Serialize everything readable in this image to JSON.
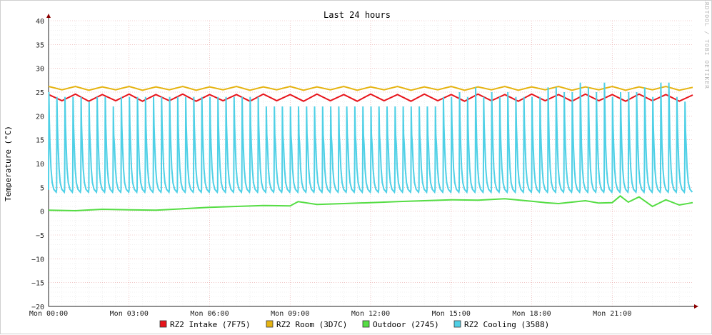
{
  "chart_data": {
    "type": "line",
    "title": "Last 24 hours",
    "ylabel": "Temperature (°C)",
    "watermark": "RRDTOOL / TOBI OETIKER",
    "ylim": [
      -20,
      40
    ],
    "yticks": [
      40,
      35,
      30,
      25,
      20,
      15,
      10,
      5,
      0,
      -5,
      -10,
      -15,
      -20
    ],
    "xlim_hours": [
      0,
      24
    ],
    "x_tick_labels": [
      "Mon 00:00",
      "Mon 03:00",
      "Mon 06:00",
      "Mon 09:00",
      "Mon 12:00",
      "Mon 15:00",
      "Mon 18:00",
      "Mon 21:00"
    ],
    "x_tick_hours": [
      0,
      3,
      6,
      9,
      12,
      15,
      18,
      21
    ],
    "grid": true,
    "legend_position": "bottom",
    "series": [
      {
        "name": "RZ2 Intake (7F75)",
        "color": "#e8141b",
        "x_hours": [
          0,
          0.5,
          1,
          1.5,
          2,
          2.5,
          3,
          3.5,
          4,
          4.5,
          5,
          5.5,
          6,
          6.5,
          7,
          7.5,
          8,
          8.5,
          9,
          9.5,
          10,
          10.5,
          11,
          11.5,
          12,
          12.5,
          13,
          13.5,
          14,
          14.5,
          15,
          15.5,
          16,
          16.5,
          17,
          17.5,
          18,
          18.5,
          19,
          19.5,
          20,
          20.5,
          21,
          21.5,
          22,
          22.5,
          23,
          23.5,
          24
        ],
        "values": [
          24.5,
          23.2,
          24.6,
          23.1,
          24.5,
          23.2,
          24.6,
          23.1,
          24.5,
          23.2,
          24.6,
          23.1,
          24.5,
          23.2,
          24.5,
          23.1,
          24.6,
          23.2,
          24.5,
          23.1,
          24.6,
          23.2,
          24.5,
          23.1,
          24.6,
          23.2,
          24.5,
          23.1,
          24.6,
          23.2,
          24.5,
          23.1,
          24.6,
          23.2,
          24.5,
          23.1,
          24.6,
          23.2,
          24.5,
          23.1,
          24.6,
          23.2,
          24.5,
          23.1,
          24.6,
          23.2,
          24.5,
          23.1,
          24.4
        ]
      },
      {
        "name": "RZ2 Room (3D7C)",
        "color": "#e6b412",
        "x_hours": [
          0,
          0.5,
          1,
          1.5,
          2,
          2.5,
          3,
          3.5,
          4,
          4.5,
          5,
          5.5,
          6,
          6.5,
          7,
          7.5,
          8,
          8.5,
          9,
          9.5,
          10,
          10.5,
          11,
          11.5,
          12,
          12.5,
          13,
          13.5,
          14,
          14.5,
          15,
          15.5,
          16,
          16.5,
          17,
          17.5,
          18,
          18.5,
          19,
          19.5,
          20,
          20.5,
          21,
          21.5,
          22,
          22.5,
          23,
          23.5,
          24
        ],
        "values": [
          26.2,
          25.5,
          26.2,
          25.4,
          26.1,
          25.5,
          26.2,
          25.4,
          26.1,
          25.5,
          26.2,
          25.4,
          26.1,
          25.5,
          26.2,
          25.4,
          26.1,
          25.5,
          26.2,
          25.4,
          26.1,
          25.5,
          26.2,
          25.4,
          26.1,
          25.5,
          26.2,
          25.4,
          26.1,
          25.5,
          26.2,
          25.4,
          26.1,
          25.5,
          26.2,
          25.4,
          26.1,
          25.5,
          26.2,
          25.4,
          26.1,
          25.5,
          26.2,
          25.4,
          26.1,
          25.5,
          26.2,
          25.4,
          26.0
        ]
      },
      {
        "name": "Outdoor (2745)",
        "color": "#55dd44",
        "x_hours": [
          0,
          1,
          2,
          3,
          4,
          5,
          6,
          7,
          8,
          9,
          9.3,
          10,
          11,
          12,
          13,
          14,
          15,
          16,
          17,
          18,
          18.5,
          19,
          19.5,
          20,
          20.5,
          21,
          21.3,
          21.6,
          22,
          22.5,
          23,
          23.5,
          24
        ],
        "values": [
          0.2,
          0.1,
          0.4,
          0.3,
          0.2,
          0.5,
          0.8,
          1.0,
          1.2,
          1.1,
          2.0,
          1.4,
          1.6,
          1.8,
          2.0,
          2.2,
          2.4,
          2.3,
          2.6,
          2.1,
          1.8,
          1.6,
          1.9,
          2.2,
          1.7,
          1.8,
          3.2,
          1.9,
          3.0,
          1.0,
          2.4,
          1.3,
          1.8
        ]
      },
      {
        "name": "RZ2 Cooling (3588)",
        "color": "#4fd0e6",
        "cycle_minutes": 18,
        "baseline_min": 4,
        "peak_range": [
          20,
          27
        ],
        "x_hours": [
          0,
          0.3,
          0.6,
          0.9,
          1.2,
          1.5,
          1.8,
          2.1,
          2.4,
          2.7,
          3.0,
          3.3,
          3.6,
          3.9,
          4.2,
          4.5,
          4.8,
          5.1,
          5.4,
          5.7,
          6.0,
          6.3,
          6.6,
          6.9,
          7.2,
          7.5,
          7.8,
          8.1,
          8.4,
          8.7,
          9.0,
          9.3,
          9.6,
          9.9,
          10.2,
          10.5,
          10.8,
          11.1,
          11.4,
          11.7,
          12.0,
          12.3,
          12.6,
          12.9,
          13.2,
          13.5,
          13.8,
          14.1,
          14.4,
          14.7,
          15.0,
          15.3,
          15.6,
          15.9,
          16.2,
          16.5,
          16.8,
          17.1,
          17.4,
          17.7,
          18.0,
          18.3,
          18.6,
          18.9,
          19.2,
          19.5,
          19.8,
          20.1,
          20.4,
          20.7,
          21.0,
          21.3,
          21.6,
          21.9,
          22.2,
          22.5,
          22.8,
          23.1,
          23.4,
          23.7
        ],
        "peaks": [
          25,
          24,
          24,
          24,
          24,
          23,
          24,
          24,
          22,
          24,
          24,
          24,
          24,
          24,
          24,
          24,
          24,
          24,
          24,
          24,
          24,
          24,
          24,
          24,
          24,
          24,
          24,
          22,
          22,
          22,
          22,
          22,
          22,
          22,
          22,
          22,
          22,
          22,
          22,
          22,
          22,
          22,
          22,
          22,
          22,
          22,
          22,
          22,
          22,
          24,
          24,
          25,
          24,
          26,
          24,
          25,
          24,
          25,
          24,
          24,
          24,
          24,
          26,
          26,
          25,
          25,
          27,
          26,
          25,
          27,
          24,
          25,
          25,
          25,
          26,
          24,
          27,
          27,
          24,
          23
        ]
      }
    ]
  }
}
